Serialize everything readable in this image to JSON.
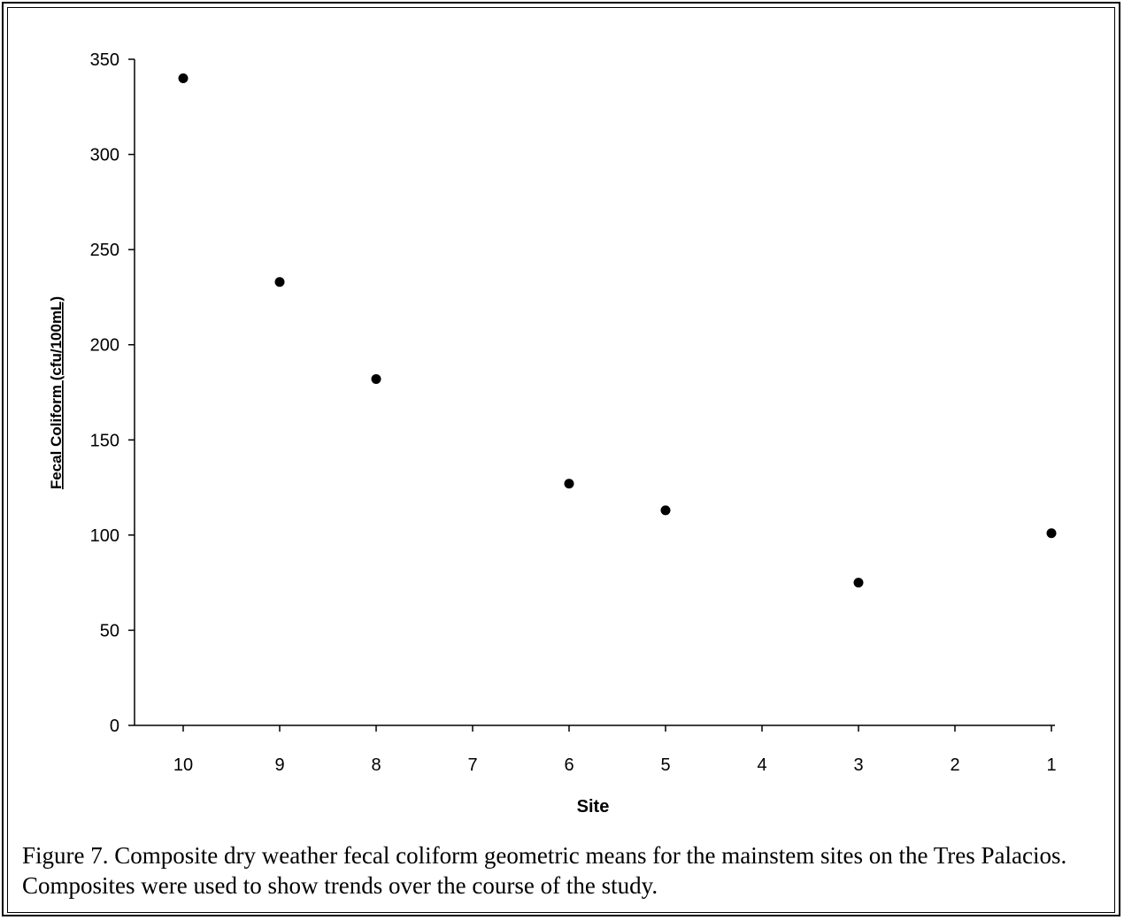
{
  "chart_data": {
    "type": "scatter",
    "categories": [
      "10",
      "9",
      "8",
      "7",
      "6",
      "5",
      "4",
      "3",
      "2",
      "1"
    ],
    "series": [
      {
        "x": [
          "10",
          "9",
          "8",
          "6",
          "5",
          "3",
          "1"
        ],
        "values": [
          340,
          233,
          182,
          127,
          113,
          75,
          101
        ],
        "color": "#000000"
      }
    ],
    "xlabel": "Site",
    "ylabel": "Fecal Coliform (cfu/100mL)",
    "ylim": [
      0,
      350
    ],
    "yticks": [
      0,
      50,
      100,
      150,
      200,
      250,
      300,
      350
    ],
    "grid": false,
    "legend": "none"
  },
  "caption": "Figure 7. Composite dry weather fecal coliform geometric means for the mainstem sites on the Tres Palacios. Composites were used to show trends over the course of the study."
}
